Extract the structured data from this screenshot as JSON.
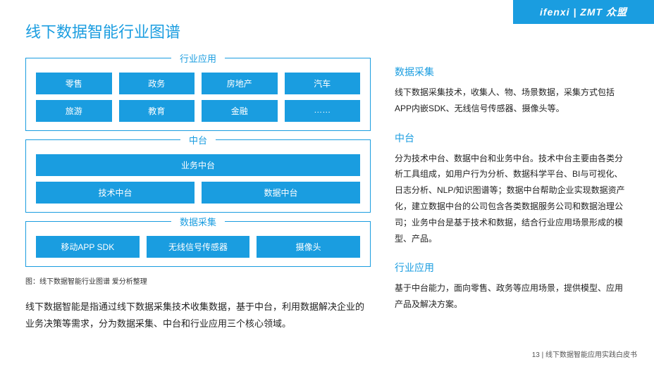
{
  "header": {
    "brand": "ifenxi | ZMT 众盟"
  },
  "title": "线下数据智能行业图谱",
  "diagram": {
    "groups": [
      {
        "label": "行业应用",
        "rows": [
          [
            {
              "text": "零售"
            },
            {
              "text": "政务"
            },
            {
              "text": "房地产"
            },
            {
              "text": "汽车"
            }
          ],
          [
            {
              "text": "旅游"
            },
            {
              "text": "教育"
            },
            {
              "text": "金融"
            },
            {
              "text": "……"
            }
          ]
        ]
      },
      {
        "label": "中台",
        "rows": [
          [
            {
              "text": "业务中台",
              "full": true
            }
          ],
          [
            {
              "text": "技术中台"
            },
            {
              "text": "数据中台"
            }
          ]
        ]
      },
      {
        "label": "数据采集",
        "rows": [
          [
            {
              "text": "移动APP SDK"
            },
            {
              "text": "无线信号传感器"
            },
            {
              "text": "摄像头"
            }
          ]
        ]
      }
    ]
  },
  "caption": "图：线下数据智能行业图谱  爱分析整理",
  "description": "线下数据智能是指通过线下数据采集技术收集数据，基于中台，利用数据解决企业的业务决策等需求，分为数据采集、中台和行业应用三个核心领域。",
  "sections": [
    {
      "title": "数据采集",
      "body": "线下数据采集技术，收集人、物、场景数据，采集方式包括APP内嵌SDK、无线信号传感器、摄像头等。"
    },
    {
      "title": "中台",
      "body": "分为技术中台、数据中台和业务中台。技术中台主要由各类分析工具组成，如用户行为分析、数据科学平台、BI与可视化、日志分析、NLP/知识图谱等；数据中台帮助企业实现数据资产化，建立数据中台的公司包含各类数据服务公司和数据治理公司；业务中台是基于技术和数据，结合行业应用场景形成的模型、产品。"
    },
    {
      "title": "行业应用",
      "body": "基于中台能力，面向零售、政务等应用场景，提供模型、应用产品及解决方案。"
    }
  ],
  "footer": "13 | 线下数据智能应用实践白皮书",
  "colors": {
    "accent": "#1a9de0"
  }
}
